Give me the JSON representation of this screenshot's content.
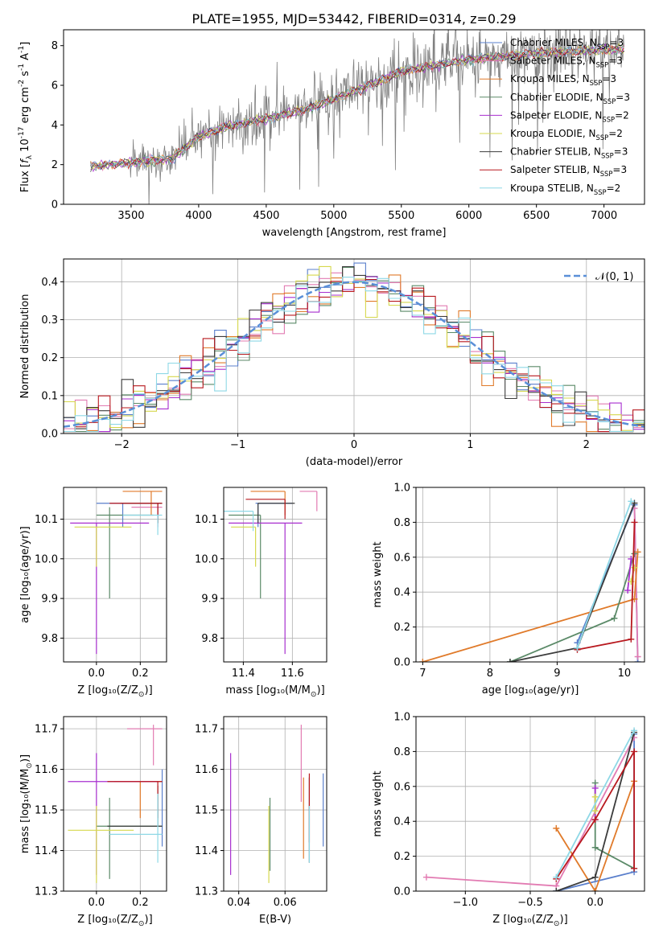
{
  "title": "PLATE=1955, MJD=53442, FIBERID=0314, z=0.29",
  "colors": [
    "#5a7fcc",
    "#e27bb2",
    "#e07a2a",
    "#5b8a68",
    "#a82fcf",
    "#d6d84d",
    "#3c3c3c",
    "#b8191f",
    "#8ed8e6"
  ],
  "legend_spectrum": [
    "Chabrier MILES, N$_{SSP}$=3",
    "Salpeter MILES, N$_{SSP}$=3",
    "Kroupa MILES, N$_{SSP}$=3",
    "Chabrier ELODIE, N$_{SSP}$=3",
    "Salpeter ELODIE, N$_{SSP}$=2",
    "Kroupa ELODIE, N$_{SSP}$=2",
    "Chabrier STELIB, N$_{SSP}$=3",
    "Salpeter STELIB, N$_{SSP}$=3",
    "Kroupa STELIB, N$_{SSP}$=2"
  ],
  "legend_hist": "$\\mathcal{N}(0, 1)$",
  "chart_data": [
    {
      "id": "spectrum",
      "type": "line",
      "title": "PLATE=1955, MJD=53442, FIBERID=0314, z=0.29",
      "xlabel": "wavelength [Angstrom, rest frame]",
      "ylabel": "Flux [$f_\\lambda 10^{-17}$ erg cm$^{-2}$ s$^{-1}$ A$^{-1}$]",
      "xlim": [
        3000,
        7300
      ],
      "ylim": [
        0,
        8.8
      ],
      "xticks": [
        3500,
        4000,
        4500,
        5000,
        5500,
        6000,
        6500,
        7000
      ],
      "yticks": [
        0,
        2,
        4,
        6,
        8
      ],
      "grid": false,
      "legend": "right",
      "observed_color": "#808080",
      "continuum": [
        [
          3200,
          1.9
        ],
        [
          3500,
          2.1
        ],
        [
          3800,
          2.3
        ],
        [
          4000,
          3.4
        ],
        [
          4200,
          3.9
        ],
        [
          4500,
          4.3
        ],
        [
          4800,
          4.8
        ],
        [
          5000,
          5.3
        ],
        [
          5300,
          6.1
        ],
        [
          5500,
          6.7
        ],
        [
          6000,
          7.3
        ],
        [
          6500,
          7.6
        ],
        [
          7000,
          7.8
        ],
        [
          7150,
          7.8
        ]
      ]
    },
    {
      "id": "histogram",
      "type": "bar",
      "xlabel": "(data-model)/error",
      "ylabel": "Normed distribution",
      "xlim": [
        -2.5,
        2.5
      ],
      "ylim": [
        0,
        0.46
      ],
      "xticks": [
        -2,
        -1,
        0,
        1,
        2
      ],
      "yticks": [
        0,
        0.1,
        0.2,
        0.3,
        0.4
      ],
      "grid": true,
      "legend": "top-right",
      "bin_width": 0.1,
      "gaussian": {
        "mean": 0,
        "sigma": 1
      }
    },
    {
      "id": "age_vs_Z",
      "type": "scatter",
      "xlabel": "Z [$\\log_{10}(Z/Z_\\odot)$]",
      "ylabel": "age  [$\\log_{10}(age/yr)$]",
      "xlim": [
        -0.15,
        0.32
      ],
      "ylim": [
        9.74,
        10.18
      ],
      "xticks": [
        0,
        0.2
      ],
      "xtick_labels": [
        "0.0",
        "0.2"
      ],
      "yticks": [
        9.8,
        9.9,
        10.0,
        10.1
      ],
      "grid": true,
      "points": [
        {
          "x": 0.12,
          "y": 10.14,
          "xerr": [
            0.12,
            0.17
          ],
          "yerr": [
            0.06,
            0.0
          ]
        },
        {
          "x": 0.28,
          "y": 10.13,
          "xerr": [
            0.12,
            0.02
          ],
          "yerr": [
            0.05,
            0.0
          ]
        },
        {
          "x": 0.25,
          "y": 10.17,
          "xerr": [
            0.13,
            0.05
          ],
          "yerr": [
            0.06,
            0.0
          ]
        },
        {
          "x": 0.06,
          "y": 10.11,
          "xerr": [
            0.06,
            0.2
          ],
          "yerr": [
            0.21,
            0.02
          ]
        },
        {
          "x": 0.0,
          "y": 10.09,
          "xerr": [
            0.12,
            0.24
          ],
          "yerr": [
            0.33,
            0.0
          ]
        },
        {
          "x": 0.0,
          "y": 10.08,
          "xerr": [
            0.1,
            0.16
          ],
          "yerr": [
            0.1,
            0.0
          ]
        },
        {
          "x": 0.28,
          "y": 10.14,
          "xerr": [
            0.17,
            0.02
          ],
          "yerr": [
            0.05,
            0.0
          ]
        },
        {
          "x": 0.28,
          "y": 10.14,
          "xerr": [
            0.22,
            0.02
          ],
          "yerr": [
            0.05,
            0.0
          ]
        },
        {
          "x": 0.28,
          "y": 10.11,
          "xerr": [
            0.16,
            0.02
          ],
          "yerr": [
            0.05,
            0.0
          ]
        }
      ]
    },
    {
      "id": "age_vs_mass",
      "type": "scatter",
      "xlabel": "mass [$\\log_{10}(M/M_\\odot)$]",
      "ylabel": "",
      "xlim": [
        11.32,
        11.74
      ],
      "ylim": [
        9.74,
        10.18
      ],
      "xticks": [
        11.4,
        11.6
      ],
      "xtick_labels": [
        "11.4",
        "11.6"
      ],
      "yticks": [
        9.8,
        9.9,
        10.0,
        10.1
      ],
      "grid": true,
      "points": [
        {
          "x": 11.46,
          "y": 10.14,
          "xerr": [
            0.01,
            0.14
          ],
          "yerr": [
            0.06,
            0.0
          ]
        },
        {
          "x": 11.7,
          "y": 10.17,
          "xerr": [
            0.07,
            0.0
          ],
          "yerr": [
            0.05,
            0.0
          ]
        },
        {
          "x": 11.57,
          "y": 10.17,
          "xerr": [
            0.14,
            0.0
          ],
          "yerr": [
            0.06,
            0.0
          ]
        },
        {
          "x": 11.47,
          "y": 10.11,
          "xerr": [
            0.13,
            0.0
          ],
          "yerr": [
            0.21,
            0.0
          ]
        },
        {
          "x": 11.57,
          "y": 10.09,
          "xerr": [
            0.23,
            0.07
          ],
          "yerr": [
            0.33,
            0.0
          ]
        },
        {
          "x": 11.45,
          "y": 10.08,
          "xerr": [
            0.1,
            0.0
          ],
          "yerr": [
            0.1,
            0.0
          ]
        },
        {
          "x": 11.46,
          "y": 10.14,
          "xerr": [
            0.0,
            0.15
          ],
          "yerr": [
            0.05,
            0.0
          ]
        },
        {
          "x": 11.57,
          "y": 10.15,
          "xerr": [
            0.16,
            0.0
          ],
          "yerr": [
            0.05,
            0.0
          ]
        },
        {
          "x": 11.44,
          "y": 10.12,
          "xerr": [
            0.13,
            0.0
          ],
          "yerr": [
            0.05,
            0.0
          ]
        }
      ]
    },
    {
      "id": "weight_vs_age",
      "type": "line",
      "xlabel": "age  [$\\log_{10}(age/yr)$]",
      "ylabel": "mass weight",
      "xlim": [
        6.9,
        10.3
      ],
      "ylim": [
        0,
        1.0
      ],
      "xticks": [
        7,
        8,
        9,
        10
      ],
      "yticks": [
        0,
        0.2,
        0.4,
        0.6,
        0.8,
        1.0
      ],
      "grid": true,
      "series": [
        {
          "x": [
            9.3,
            10.15,
            10.2
          ],
          "y": [
            0.11,
            0.9,
            0.0
          ]
        },
        {
          "x": [
            10.15,
            10.2
          ],
          "y": [
            0.88,
            0.03
          ]
        },
        {
          "x": [
            7.0,
            10.15,
            10.2
          ],
          "y": [
            0.0,
            0.36,
            0.63
          ]
        },
        {
          "x": [
            8.3,
            9.85,
            10.15
          ],
          "y": [
            0.0,
            0.25,
            0.62
          ]
        },
        {
          "x": [
            10.05,
            10.1
          ],
          "y": [
            0.41,
            0.59
          ]
        },
        {
          "x": [
            10.1,
            10.15
          ],
          "y": [
            0.46,
            0.54
          ]
        },
        {
          "x": [
            8.3,
            9.3,
            10.15
          ],
          "y": [
            0.0,
            0.08,
            0.91
          ]
        },
        {
          "x": [
            9.3,
            10.1,
            10.15
          ],
          "y": [
            0.07,
            0.13,
            0.8
          ]
        },
        {
          "x": [
            9.3,
            10.1
          ],
          "y": [
            0.08,
            0.92
          ]
        }
      ]
    },
    {
      "id": "mass_vs_Z",
      "type": "scatter",
      "xlabel": "Z [$\\log_{10}(Z/Z_\\odot)$]",
      "ylabel": "mass [$\\log_{10}(M/M_\\odot)$]",
      "xlim": [
        -0.15,
        0.32
      ],
      "ylim": [
        11.3,
        11.73
      ],
      "xticks": [
        0,
        0.2
      ],
      "xtick_labels": [
        "0.0",
        "0.2"
      ],
      "yticks": [
        11.3,
        11.4,
        11.5,
        11.6,
        11.7
      ],
      "grid": true,
      "points": [
        {
          "x": 0.3,
          "y": 11.46,
          "xerr": [
            0.0,
            0.0
          ],
          "yerr": [
            0.05,
            0.14
          ]
        },
        {
          "x": 0.26,
          "y": 11.7,
          "xerr": [
            0.12,
            0.04
          ],
          "yerr": [
            0.09,
            0.01
          ]
        },
        {
          "x": 0.2,
          "y": 11.57,
          "xerr": [
            0.12,
            0.1
          ],
          "yerr": [
            0.09,
            0.0
          ]
        },
        {
          "x": 0.06,
          "y": 11.46,
          "xerr": [
            0.06,
            0.24
          ],
          "yerr": [
            0.13,
            0.07
          ]
        },
        {
          "x": 0.0,
          "y": 11.57,
          "xerr": [
            0.13,
            0.28
          ],
          "yerr": [
            0.23,
            0.07
          ]
        },
        {
          "x": 0.0,
          "y": 11.45,
          "xerr": [
            0.13,
            0.17
          ],
          "yerr": [
            0.13,
            0.06
          ]
        },
        {
          "x": 0.28,
          "y": 11.46,
          "xerr": [
            0.23,
            0.02
          ],
          "yerr": [
            0.0,
            0.1
          ]
        },
        {
          "x": 0.28,
          "y": 11.57,
          "xerr": [
            0.23,
            0.02
          ],
          "yerr": [
            0.09,
            0.0
          ]
        },
        {
          "x": 0.28,
          "y": 11.44,
          "xerr": [
            0.22,
            0.02
          ],
          "yerr": [
            0.07,
            0.1
          ]
        }
      ]
    },
    {
      "id": "mass_vs_ebv",
      "type": "scatter",
      "xlabel": "E(B-V)",
      "ylabel": "",
      "xlim": [
        0.0335,
        0.078
      ],
      "ylim": [
        11.3,
        11.73
      ],
      "xticks": [
        0.04,
        0.06
      ],
      "xtick_labels": [
        "0.04",
        "0.06"
      ],
      "yticks": [
        11.3,
        11.4,
        11.5,
        11.6,
        11.7
      ],
      "grid": true,
      "points": [
        {
          "x": 0.0765,
          "y": 11.5,
          "yerr": [
            0.09,
            0.09
          ]
        },
        {
          "x": 0.067,
          "y": 11.62,
          "yerr": [
            0.1,
            0.09
          ]
        },
        {
          "x": 0.068,
          "y": 11.48,
          "yerr": [
            0.1,
            0.1
          ]
        },
        {
          "x": 0.0535,
          "y": 11.45,
          "yerr": [
            0.1,
            0.08
          ]
        },
        {
          "x": 0.0365,
          "y": 11.49,
          "yerr": [
            0.15,
            0.15
          ]
        },
        {
          "x": 0.053,
          "y": 11.42,
          "yerr": [
            0.1,
            0.09
          ]
        },
        {
          "x": 0.0705,
          "y": 11.45,
          "yerr": [
            0.08,
            0.13
          ]
        },
        {
          "x": 0.0705,
          "y": 11.5,
          "yerr": [
            0.08,
            0.09
          ]
        },
        {
          "x": 0.0705,
          "y": 11.42,
          "yerr": [
            0.05,
            0.09
          ]
        }
      ]
    },
    {
      "id": "weight_vs_Z",
      "type": "line",
      "xlabel": "Z [$\\log_{10}(Z/Z_\\odot)$]",
      "ylabel": "mass weight",
      "xlim": [
        -1.38,
        0.38
      ],
      "ylim": [
        0,
        1.0
      ],
      "xticks": [
        -1.0,
        -0.5,
        0.0
      ],
      "xtick_labels": [
        "−1.0",
        "−0.5",
        "0.0"
      ],
      "yticks": [
        0,
        0.2,
        0.4,
        0.6,
        0.8,
        1.0
      ],
      "grid": true,
      "series": [
        {
          "x": [
            -0.3,
            0.3,
            0.3
          ],
          "y": [
            0.0,
            0.11,
            0.9
          ]
        },
        {
          "x": [
            -1.3,
            -0.3,
            0.3
          ],
          "y": [
            0.08,
            0.03,
            0.88
          ]
        },
        {
          "x": [
            -0.3,
            0.0,
            0.3
          ],
          "y": [
            0.36,
            0.0,
            0.63
          ]
        },
        {
          "x": [
            0.0,
            0.0,
            0.3
          ],
          "y": [
            0.62,
            0.25,
            0.13
          ]
        },
        {
          "x": [
            0.0,
            0.0
          ],
          "y": [
            0.41,
            0.59
          ]
        },
        {
          "x": [
            0.0,
            0.0
          ],
          "y": [
            0.46,
            0.54
          ]
        },
        {
          "x": [
            -0.3,
            0.0,
            0.3
          ],
          "y": [
            0.0,
            0.08,
            0.91
          ]
        },
        {
          "x": [
            -0.3,
            0.0,
            0.3,
            0.3
          ],
          "y": [
            0.07,
            0.41,
            0.8,
            0.13
          ]
        },
        {
          "x": [
            -0.3,
            0.3
          ],
          "y": [
            0.08,
            0.92
          ]
        }
      ]
    }
  ]
}
